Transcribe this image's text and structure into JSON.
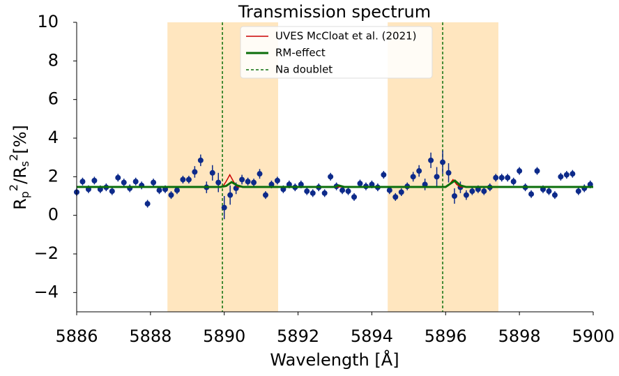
{
  "chart_data": {
    "type": "errorbar",
    "title": "Transmission spectrum",
    "xlabel": "Wavelength [Å]",
    "ylabel": {
      "parts": [
        "R",
        "p",
        "2",
        "/R",
        "s",
        "2",
        "[%]"
      ]
    },
    "xlim": [
      5886,
      5900
    ],
    "xticks": [
      5886,
      5888,
      5890,
      5892,
      5894,
      5896,
      5898,
      5900
    ],
    "ylim": [
      -5,
      10
    ],
    "yticks": [
      {
        "value": -4,
        "label": "−4"
      },
      {
        "value": -2,
        "label": "−2"
      },
      0,
      2,
      4,
      6,
      8,
      10
    ],
    "grid": false,
    "legend": "upper center",
    "shaded_regions": {
      "color": "#ffe6bf",
      "ranges": [
        [
          5888.46,
          5891.46
        ],
        [
          5894.43,
          5897.43
        ]
      ]
    },
    "binned": {
      "color": "#0d2a8a",
      "x": [
        5886.0,
        5886.16,
        5886.32,
        5886.48,
        5886.64,
        5886.8,
        5886.96,
        5887.12,
        5887.28,
        5887.44,
        5887.6,
        5887.76,
        5887.92,
        5888.08,
        5888.24,
        5888.4,
        5888.56,
        5888.72,
        5888.88,
        5889.04,
        5889.2,
        5889.36,
        5889.52,
        5889.68,
        5889.84,
        5890.0,
        5890.16,
        5890.32,
        5890.48,
        5890.64,
        5890.8,
        5890.96,
        5891.12,
        5891.28,
        5891.44,
        5891.6,
        5891.76,
        5891.92,
        5892.08,
        5892.24,
        5892.4,
        5892.56,
        5892.72,
        5892.88,
        5893.04,
        5893.2,
        5893.36,
        5893.52,
        5893.68,
        5893.84,
        5894.0,
        5894.16,
        5894.32,
        5894.48,
        5894.64,
        5894.8,
        5894.96,
        5895.12,
        5895.28,
        5895.44,
        5895.6,
        5895.76,
        5895.92,
        5896.08,
        5896.24,
        5896.4,
        5896.56,
        5896.72,
        5896.88,
        5897.04,
        5897.2,
        5897.36,
        5897.52,
        5897.68,
        5897.84,
        5898.0,
        5898.16,
        5898.32,
        5898.48,
        5898.64,
        5898.8,
        5898.96,
        5899.12,
        5899.28,
        5899.44,
        5899.6,
        5899.76,
        5899.92
      ],
      "values": [
        1.2,
        1.75,
        1.35,
        1.8,
        1.35,
        1.45,
        1.25,
        1.95,
        1.7,
        1.4,
        1.75,
        1.55,
        0.6,
        1.7,
        1.3,
        1.35,
        1.05,
        1.3,
        1.85,
        1.85,
        2.25,
        2.85,
        1.45,
        2.2,
        1.7,
        0.4,
        1.05,
        1.4,
        1.85,
        1.75,
        1.7,
        2.15,
        1.05,
        1.6,
        1.8,
        1.35,
        1.6,
        1.45,
        1.6,
        1.25,
        1.15,
        1.45,
        1.15,
        2.0,
        1.5,
        1.3,
        1.25,
        0.95,
        1.65,
        1.5,
        1.6,
        1.45,
        2.1,
        1.3,
        0.95,
        1.2,
        1.5,
        2.0,
        2.3,
        1.6,
        2.85,
        2.0,
        2.75,
        2.2,
        1.0,
        1.45,
        1.05,
        1.25,
        1.35,
        1.25,
        1.45,
        1.95,
        1.95,
        1.95,
        1.75,
        2.3,
        1.45,
        1.1,
        2.3,
        1.35,
        1.25,
        1.05,
        2.0,
        2.1,
        2.15,
        1.25,
        1.4,
        1.6
      ],
      "errors": [
        0.2,
        0.2,
        0.2,
        0.2,
        0.2,
        0.2,
        0.2,
        0.2,
        0.2,
        0.2,
        0.2,
        0.2,
        0.2,
        0.2,
        0.2,
        0.2,
        0.2,
        0.2,
        0.2,
        0.2,
        0.3,
        0.3,
        0.3,
        0.4,
        0.5,
        0.6,
        0.5,
        0.3,
        0.25,
        0.2,
        0.2,
        0.25,
        0.2,
        0.2,
        0.2,
        0.2,
        0.2,
        0.2,
        0.2,
        0.2,
        0.2,
        0.2,
        0.2,
        0.2,
        0.2,
        0.2,
        0.2,
        0.2,
        0.2,
        0.2,
        0.2,
        0.2,
        0.2,
        0.2,
        0.2,
        0.2,
        0.2,
        0.25,
        0.3,
        0.3,
        0.4,
        0.5,
        0.6,
        0.5,
        0.4,
        0.3,
        0.25,
        0.2,
        0.2,
        0.2,
        0.2,
        0.2,
        0.2,
        0.2,
        0.2,
        0.2,
        0.2,
        0.2,
        0.2,
        0.2,
        0.2,
        0.2,
        0.2,
        0.2,
        0.2,
        0.2,
        0.2,
        0.2
      ]
    },
    "series": [
      {
        "name": "UVES McCloat et al. (2021)",
        "color": "#cc0000",
        "width": 1.5,
        "x": [
          5886,
          5889.95,
          5890.05,
          5890.15,
          5890.25,
          5890.35,
          5896.0,
          5896.1,
          5896.2,
          5896.3,
          5896.4,
          5900
        ],
        "values": [
          1.47,
          1.47,
          1.75,
          2.1,
          1.75,
          1.47,
          1.47,
          1.6,
          1.85,
          1.6,
          1.47,
          1.47
        ]
      },
      {
        "name": "RM-effect",
        "color": "#0a6e0a",
        "width": 3,
        "x": [
          5886,
          5889.9,
          5890.05,
          5890.2,
          5890.35,
          5890.5,
          5893.0,
          5893.1,
          5893.25,
          5896.0,
          5896.1,
          5896.25,
          5896.4,
          5896.55,
          5900
        ],
        "values": [
          1.47,
          1.47,
          1.52,
          1.72,
          1.55,
          1.47,
          1.47,
          1.55,
          1.47,
          1.47,
          1.6,
          1.8,
          1.55,
          1.47,
          1.47
        ]
      }
    ],
    "vlines": {
      "name": "Na doublet",
      "color": "#0a6e0a",
      "x": [
        5889.95,
        5895.92
      ]
    }
  }
}
